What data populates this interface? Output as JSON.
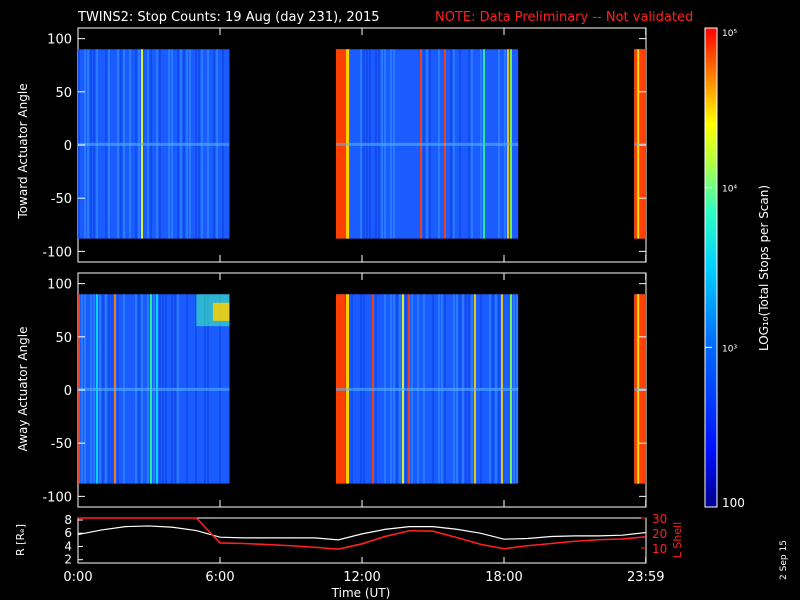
{
  "title": {
    "main": "TWINS2: Stop Counts: 19 Aug (day 231), 2015",
    "note": "NOTE: Data Preliminary -- Not validated"
  },
  "colorbar": {
    "label": "LOG₁₀(Total Stops per Scan)",
    "ticks": [
      {
        "label": "10⁵",
        "value": 100000
      },
      {
        "label": "10⁴",
        "value": 10000
      },
      {
        "label": "10³",
        "value": 1000
      },
      {
        "label": "100",
        "value": 100
      }
    ]
  },
  "side_date": "2 Sep 15",
  "colors": {
    "note": "#ff2020",
    "r_line": "#ffffff",
    "l_line": "#ff2020",
    "fill": "#1a5cff"
  },
  "chart_data": [
    {
      "type": "heatmap",
      "ylabel": "Toward Actuator Angle",
      "ylim": [
        -110,
        110
      ],
      "yticks": [
        100,
        50,
        0,
        -50,
        -100
      ],
      "angle_range": [
        -88,
        90
      ],
      "xlim_hours": [
        0,
        24
      ],
      "data_intervals_hours": [
        [
          0,
          6.4
        ],
        [
          10.9,
          18.6
        ],
        [
          23.5,
          24
        ]
      ],
      "grid": false
    },
    {
      "type": "heatmap",
      "ylabel": "Away Actuator Angle",
      "ylim": [
        -110,
        110
      ],
      "yticks": [
        100,
        50,
        0,
        -50,
        -100
      ],
      "angle_range": [
        -88,
        90
      ],
      "xlim_hours": [
        0,
        24
      ],
      "data_intervals_hours": [
        [
          0,
          6.4
        ],
        [
          10.9,
          18.6
        ],
        [
          23.5,
          24
        ]
      ],
      "grid": false
    },
    {
      "type": "line",
      "xlabel": "Time (UT)",
      "ylabel_left": "R [Rₑ]",
      "ylabel_right": "L Shell",
      "left_ticks": [
        8,
        6,
        4,
        2
      ],
      "right_ticks": [
        30,
        20,
        10
      ],
      "ylim_left": [
        1.5,
        8.3
      ],
      "ylim_right": [
        0,
        30
      ],
      "x": [
        0,
        1,
        2,
        3,
        4,
        5,
        6,
        7,
        8,
        9,
        10,
        11,
        12,
        13,
        14,
        15,
        16,
        17,
        18,
        19,
        20,
        21,
        22,
        23,
        23.99
      ],
      "series": [
        {
          "name": "R",
          "values": [
            5.8,
            6.5,
            7.0,
            7.1,
            6.9,
            6.4,
            5.4,
            5.3,
            5.3,
            5.3,
            5.3,
            5.0,
            5.9,
            6.6,
            7.0,
            7.0,
            6.6,
            6.0,
            5.1,
            5.2,
            5.5,
            5.6,
            5.6,
            5.7,
            6.1
          ]
        },
        {
          "name": "L Shell",
          "values": [
            30,
            30,
            30,
            30,
            30,
            30,
            13.4,
            13.0,
            12.3,
            11.5,
            10.5,
            9.2,
            12.8,
            17.8,
            21.5,
            21.2,
            17.0,
            12.5,
            9.5,
            11.5,
            13.0,
            14.5,
            15.5,
            16.0,
            17.5
          ]
        }
      ],
      "xticks": [
        "0:00",
        "6:00",
        "12:00",
        "18:00",
        "23:59"
      ],
      "xtick_hours": [
        0,
        6,
        12,
        18,
        23.99
      ]
    }
  ]
}
